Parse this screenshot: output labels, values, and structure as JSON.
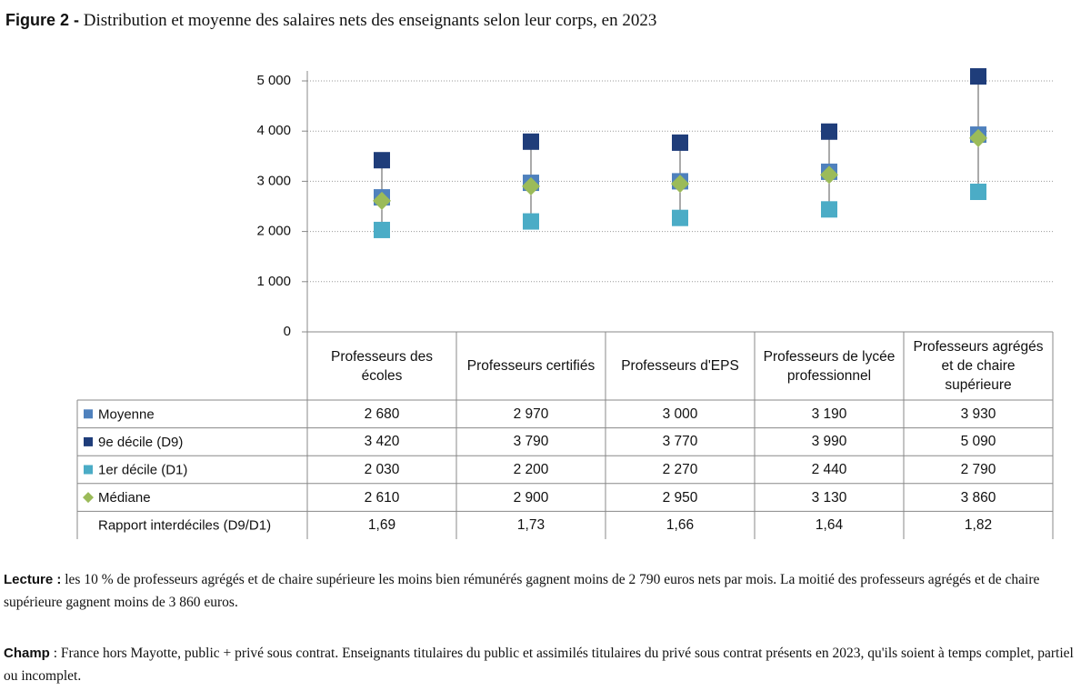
{
  "chart_data": {
    "type": "range-dot",
    "title_label": "Figure 2 -",
    "title": "Distribution et moyenne des salaires nets des enseignants selon leur corps, en 2023",
    "categories": [
      "Professeurs des écoles",
      "Professeurs certifiés",
      "Professeurs d'EPS",
      "Professeurs de lycée professionnel",
      "Professeurs agrégés et de chaire supérieure"
    ],
    "series": [
      {
        "name": "Moyenne",
        "color": "#4f81bd",
        "marker": "square",
        "values": [
          2680,
          2970,
          3000,
          3190,
          3930
        ],
        "value_labels": [
          "2 680",
          "2 970",
          "3 000",
          "3 190",
          "3 930"
        ]
      },
      {
        "name": "9e décile (D9)",
        "color": "#1f3d7a",
        "marker": "square",
        "values": [
          3420,
          3790,
          3770,
          3990,
          5090
        ],
        "value_labels": [
          "3 420",
          "3 790",
          "3 770",
          "3 990",
          "5 090"
        ]
      },
      {
        "name": "1er décile (D1)",
        "color": "#4bacc6",
        "marker": "square",
        "values": [
          2030,
          2200,
          2270,
          2440,
          2790
        ],
        "value_labels": [
          "2 030",
          "2 200",
          "2 270",
          "2 440",
          "2 790"
        ]
      },
      {
        "name": "Médiane",
        "color": "#9bbb59",
        "marker": "diamond",
        "values": [
          2610,
          2900,
          2950,
          3130,
          3860
        ],
        "value_labels": [
          "2 610",
          "2 900",
          "2 950",
          "3 130",
          "3 860"
        ]
      }
    ],
    "ratio": {
      "name": "Rapport interdéciles (D9/D1)",
      "values": [
        1.69,
        1.73,
        1.66,
        1.64,
        1.82
      ],
      "value_labels": [
        "1,69",
        "1,73",
        "1,66",
        "1,64",
        "1,82"
      ]
    },
    "ylim": [
      0,
      5000
    ],
    "yticks": [
      0,
      {
        "value": 1000,
        "label": "1 000"
      },
      {
        "value": 2000,
        "label": "2 000"
      },
      {
        "value": 3000,
        "label": "3 000"
      },
      {
        "value": 4000,
        "label": "4 000"
      },
      {
        "value": 5000,
        "label": "5 000"
      }
    ],
    "grid": true
  },
  "notes": [
    {
      "label": "Lecture :",
      "text": "les 10 % de professeurs agrégés et de chaire supérieure les moins bien rémunérés gagnent moins de 2 790 euros nets par mois. La moitié des professeurs agrégés et de chaire supérieure gagnent moins de 3 860 euros."
    },
    {
      "label": "Champ",
      "text": ": France hors Mayotte, public + privé sous contrat. Enseignants titulaires du public et assimilés titulaires du privé sous contrat présents en 2023, qu'ils soient à temps complet, partiel ou incomplet."
    }
  ]
}
